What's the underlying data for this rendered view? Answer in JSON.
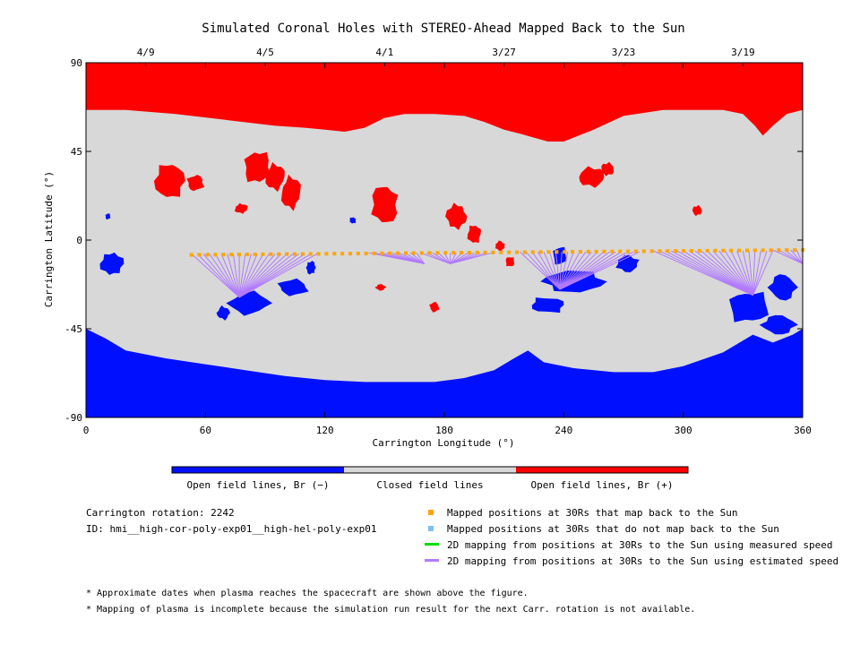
{
  "chart_data": {
    "type": "map",
    "title": "Simulated Coronal Holes with STEREO-Ahead Mapped Back to the Sun",
    "xlabel": "Carrington Longitude (°)",
    "ylabel": "Carrington Latitude (°)",
    "xlim": [
      0,
      360
    ],
    "ylim": [
      -90,
      90
    ],
    "xticks": [
      "0",
      "60",
      "120",
      "180",
      "240",
      "300",
      "360"
    ],
    "yticks": [
      "90",
      "45",
      "0",
      "-45",
      "-90"
    ],
    "top_axis": {
      "dates": [
        {
          "label": "4/9",
          "lon": 30
        },
        {
          "label": "4/5",
          "lon": 90
        },
        {
          "label": "4/1",
          "lon": 150
        },
        {
          "label": "3/27",
          "lon": 210
        },
        {
          "label": "3/23",
          "lon": 270
        },
        {
          "label": "3/19",
          "lon": 330
        }
      ]
    },
    "colorbar": [
      {
        "label": "Open field lines, Br (−)",
        "color": "#0010ff"
      },
      {
        "label": "Closed field lines",
        "color": "#d8d8d8"
      },
      {
        "label": "Open field lines, Br (+)",
        "color": "#ff0000"
      }
    ],
    "colors": {
      "negative": "#0010ff",
      "closed": "#d8d8d8",
      "positive": "#ff0000",
      "mapped": "#ffa500",
      "unmapped": "#7ec0ee",
      "measured": "#00dd00",
      "estimated": "#b27aff"
    },
    "north_boundary": [
      [
        0,
        66
      ],
      [
        20,
        66
      ],
      [
        45,
        64
      ],
      [
        70,
        61
      ],
      [
        95,
        58
      ],
      [
        110,
        57
      ],
      [
        120,
        56
      ],
      [
        130,
        55
      ],
      [
        140,
        57
      ],
      [
        150,
        62
      ],
      [
        160,
        64
      ],
      [
        175,
        64
      ],
      [
        190,
        63
      ],
      [
        200,
        60
      ],
      [
        210,
        56
      ],
      [
        218,
        54
      ],
      [
        225,
        52
      ],
      [
        232,
        50
      ],
      [
        240,
        50
      ],
      [
        255,
        56
      ],
      [
        270,
        63
      ],
      [
        290,
        66
      ],
      [
        320,
        66
      ],
      [
        330,
        64
      ],
      [
        336,
        58
      ],
      [
        340,
        53
      ],
      [
        345,
        58
      ],
      [
        352,
        64
      ],
      [
        360,
        66
      ]
    ],
    "south_boundary": [
      [
        0,
        -45
      ],
      [
        10,
        -50
      ],
      [
        20,
        -56
      ],
      [
        40,
        -60
      ],
      [
        60,
        -63
      ],
      [
        80,
        -66
      ],
      [
        100,
        -69
      ],
      [
        120,
        -71
      ],
      [
        140,
        -72
      ],
      [
        160,
        -72
      ],
      [
        175,
        -72
      ],
      [
        190,
        -70
      ],
      [
        205,
        -66
      ],
      [
        215,
        -60
      ],
      [
        222,
        -56
      ],
      [
        230,
        -62
      ],
      [
        245,
        -65
      ],
      [
        265,
        -67
      ],
      [
        285,
        -67
      ],
      [
        300,
        -64
      ],
      [
        320,
        -57
      ],
      [
        335,
        -48
      ],
      [
        345,
        -52
      ],
      [
        355,
        -48
      ],
      [
        360,
        -45
      ]
    ],
    "mapped_points": {
      "lon_start": 53,
      "lon_end": 360,
      "count": 78,
      "lat_start": -7.5,
      "lat_end": -5
    },
    "mapping_fans": [
      {
        "lon_from": 53,
        "lon_to": 118,
        "lat_from": -7,
        "target": [
          77,
          -29
        ]
      },
      {
        "lon_from": 142,
        "lon_to": 168,
        "lat_from": -6.5,
        "target": [
          170,
          -12
        ]
      },
      {
        "lon_from": 168,
        "lon_to": 205,
        "lat_from": -6.5,
        "target": [
          183,
          -12
        ]
      },
      {
        "lon_from": 218,
        "lon_to": 280,
        "lat_from": -6,
        "target": [
          238,
          -25
        ]
      },
      {
        "lon_from": 285,
        "lon_to": 345,
        "lat_from": -5.5,
        "target": [
          335,
          -28
        ]
      },
      {
        "lon_from": 345,
        "lon_to": 360,
        "lat_from": -5,
        "target": [
          360,
          -12
        ]
      }
    ],
    "grid": false
  },
  "legend": {
    "rotation_label": "Carrington rotation: 2242",
    "id_label": "ID: hmi__high-cor-poly-exp01__high-hel-poly-exp01",
    "entries": [
      {
        "label": "Mapped positions at 30Rs that map back to the Sun",
        "kind": "square",
        "color": "#ffa500"
      },
      {
        "label": "Mapped positions at 30Rs that do not map back to the Sun",
        "kind": "square",
        "color": "#7ec0ee"
      },
      {
        "label": "2D mapping from positions at 30Rs to the Sun using measured speed",
        "kind": "line",
        "color": "#00dd00"
      },
      {
        "label": "2D mapping from positions at 30Rs to the Sun using estimated speed",
        "kind": "line",
        "color": "#b27aff"
      }
    ],
    "notes": [
      "* Approximate dates when plasma reaches the spacecraft are shown above the figure.",
      "* Mapping of plasma is incomplete because the simulation run result for the next Carr. rotation is not available."
    ]
  }
}
